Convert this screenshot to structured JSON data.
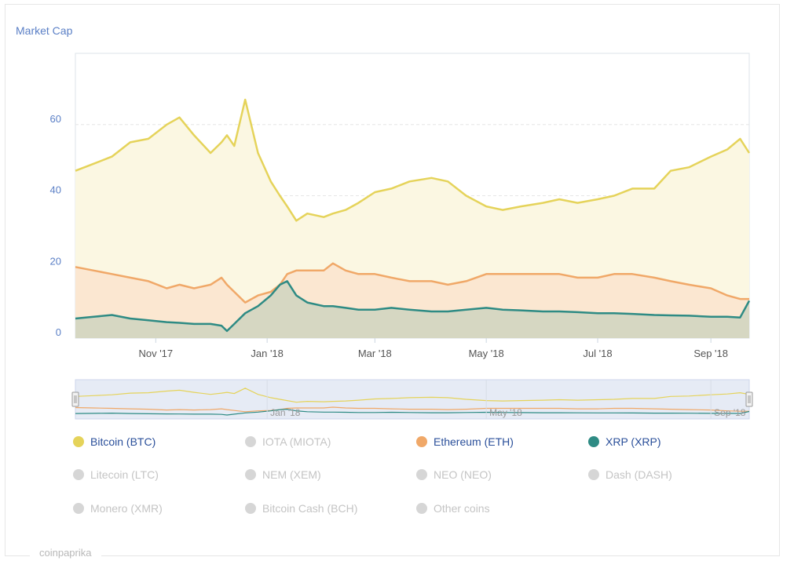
{
  "title": "Market Cap",
  "credit": "coinpaprika",
  "chart_data": {
    "type": "area",
    "title": "Market Cap",
    "ylim": [
      0,
      80
    ],
    "y_ticks": [
      0,
      20,
      40,
      60
    ],
    "x_ticks": [
      "Nov '17",
      "Jan '18",
      "Mar '18",
      "May '18",
      "Jul '18",
      "Sep '18"
    ],
    "navigator_ticks": [
      "Jan '18",
      "May '18",
      "Sep '18"
    ],
    "grid": true,
    "x": [
      "2017-09-18",
      "2017-09-28",
      "2017-10-08",
      "2017-10-18",
      "2017-10-28",
      "2017-11-07",
      "2017-11-14",
      "2017-11-22",
      "2017-12-01",
      "2017-12-07",
      "2017-12-10",
      "2017-12-14",
      "2017-12-20",
      "2017-12-27",
      "2018-01-03",
      "2018-01-08",
      "2018-01-12",
      "2018-01-17",
      "2018-01-23",
      "2018-02-01",
      "2018-02-06",
      "2018-02-13",
      "2018-02-20",
      "2018-03-01",
      "2018-03-10",
      "2018-03-20",
      "2018-04-01",
      "2018-04-10",
      "2018-04-20",
      "2018-05-01",
      "2018-05-10",
      "2018-05-20",
      "2018-06-01",
      "2018-06-10",
      "2018-06-20",
      "2018-07-01",
      "2018-07-10",
      "2018-07-20",
      "2018-08-01",
      "2018-08-10",
      "2018-08-20",
      "2018-09-01",
      "2018-09-10",
      "2018-09-17",
      "2018-09-22"
    ],
    "series": [
      {
        "name": "Bitcoin (BTC)",
        "color": "#e5d35a",
        "values": [
          47,
          49,
          51,
          55,
          56,
          60,
          62,
          57,
          52,
          55,
          57,
          54,
          67,
          52,
          44,
          40,
          37,
          33,
          35,
          34,
          35,
          36,
          38,
          41,
          42,
          44,
          45,
          44,
          40,
          37,
          36,
          37,
          38,
          39,
          38,
          39,
          40,
          42,
          42,
          47,
          48,
          51,
          53,
          56,
          52
        ]
      },
      {
        "name": "Ethereum (ETH)",
        "color": "#f0a868",
        "values": [
          20,
          19,
          18,
          17,
          16,
          14,
          15,
          14,
          15,
          17,
          15,
          13,
          10,
          12,
          13,
          15,
          18,
          19,
          19,
          19,
          21,
          19,
          18,
          18,
          17,
          16,
          16,
          15,
          16,
          18,
          18,
          18,
          18,
          18,
          17,
          17,
          18,
          18,
          17,
          16,
          15,
          14,
          12,
          11,
          11
        ]
      },
      {
        "name": "XRP (XRP)",
        "color": "#2e8b84",
        "values": [
          5.5,
          6,
          6.5,
          5.5,
          5,
          4.5,
          4.3,
          4,
          4,
          3.5,
          2,
          4,
          7,
          9,
          12,
          15,
          16,
          12,
          10,
          9,
          9,
          8.5,
          8,
          8,
          8.5,
          8,
          7.5,
          7.5,
          8,
          8.5,
          8,
          7.8,
          7.5,
          7.5,
          7.3,
          7,
          7,
          6.8,
          6.5,
          6.4,
          6.3,
          6,
          6,
          5.8,
          10.5
        ]
      }
    ]
  },
  "legend": [
    {
      "label": "Bitcoin (BTC)",
      "color": "#e5d35a",
      "active": true
    },
    {
      "label": "IOTA (MIOTA)",
      "color": "#d6d6d6",
      "active": false
    },
    {
      "label": "Ethereum (ETH)",
      "color": "#f0a868",
      "active": true
    },
    {
      "label": "XRP (XRP)",
      "color": "#2e8b84",
      "active": true
    },
    {
      "label": "Litecoin (LTC)",
      "color": "#d6d6d6",
      "active": false
    },
    {
      "label": "NEM (XEM)",
      "color": "#d6d6d6",
      "active": false
    },
    {
      "label": "NEO (NEO)",
      "color": "#d6d6d6",
      "active": false
    },
    {
      "label": "Dash (DASH)",
      "color": "#d6d6d6",
      "active": false
    },
    {
      "label": "Monero (XMR)",
      "color": "#d6d6d6",
      "active": false
    },
    {
      "label": "Bitcoin Cash (BCH)",
      "color": "#d6d6d6",
      "active": false
    },
    {
      "label": "Other coins",
      "color": "#d6d6d6",
      "active": false
    }
  ]
}
